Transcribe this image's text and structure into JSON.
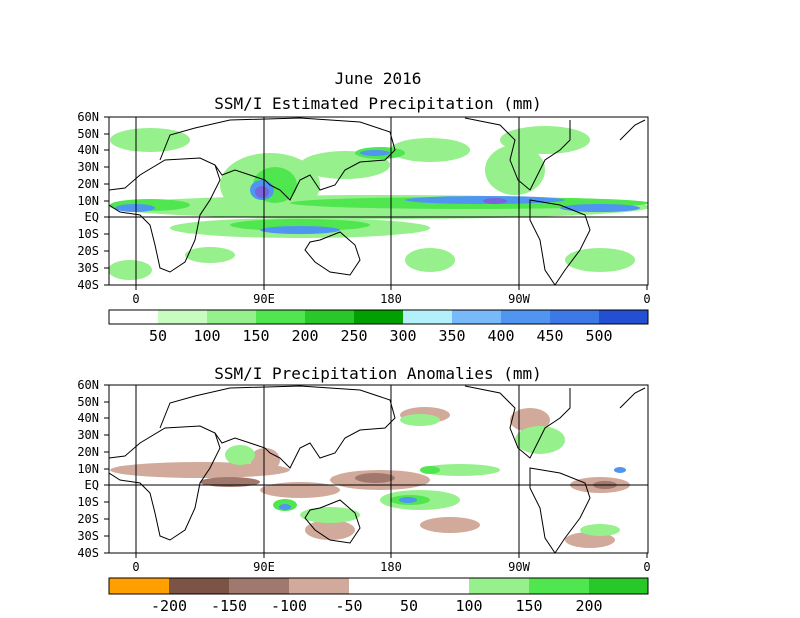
{
  "month_title": "June 2016",
  "panels": [
    {
      "title": "SSM/I Estimated Precipitation (mm)",
      "lat_labels": [
        "60N",
        "50N",
        "40N",
        "30N",
        "20N",
        "10N",
        "EQ",
        "10S",
        "20S",
        "30S",
        "40S"
      ],
      "lon_labels": [
        "0",
        "90E",
        "180",
        "90W",
        "0"
      ],
      "colorbar": {
        "colors": [
          "#ffffff",
          "#c8fcc0",
          "#96f08c",
          "#50e650",
          "#28c828",
          "#00a000",
          "#b4f0fa",
          "#78b9fa",
          "#5096f0",
          "#3c78e6",
          "#2350d2",
          "#a082fa",
          "#7864dc"
        ],
        "labels": [
          "50",
          "100",
          "150",
          "200",
          "250",
          "300",
          "350",
          "400",
          "450",
          "500"
        ]
      }
    },
    {
      "title": "SSM/I Precipitation Anomalies (mm)",
      "lat_labels": [
        "60N",
        "50N",
        "40N",
        "30N",
        "20N",
        "10N",
        "EQ",
        "10S",
        "20S",
        "30S",
        "40S"
      ],
      "lon_labels": [
        "0",
        "90E",
        "180",
        "90W",
        "0"
      ],
      "colorbar": {
        "colors": [
          "#ffa000",
          "#7c5446",
          "#a0786e",
          "#d2aa9b",
          "#ffffff",
          "#ffffff",
          "#96f08c",
          "#50e650",
          "#28c828",
          "#5096f0"
        ],
        "labels": [
          "-200",
          "-150",
          "-100",
          "-50",
          "50",
          "100",
          "150",
          "200"
        ]
      }
    }
  ]
}
